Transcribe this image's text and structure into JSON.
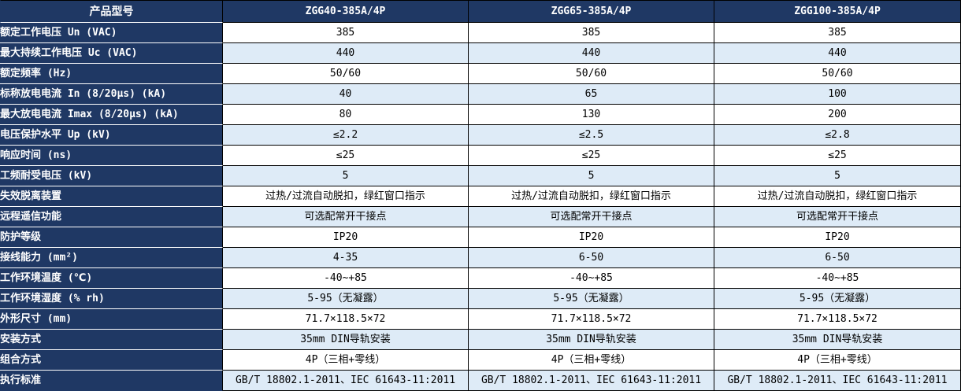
{
  "table": {
    "header": {
      "label": "产品型号",
      "columns": [
        "ZGG40-385A/4P",
        "ZGG65-385A/4P",
        "ZGG100-385A/4P"
      ]
    },
    "rows": [
      {
        "label": "额定工作电压 Un (VAC)",
        "values": [
          "385",
          "385",
          "385"
        ]
      },
      {
        "label": "最大持续工作电压 Uc (VAC)",
        "values": [
          "440",
          "440",
          "440"
        ]
      },
      {
        "label": "额定频率 (Hz)",
        "values": [
          "50/60",
          "50/60",
          "50/60"
        ]
      },
      {
        "label": "标称放电电流 In (8/20μs) (kA)",
        "values": [
          "40",
          "65",
          "100"
        ]
      },
      {
        "label": "最大放电电流 Imax (8/20μs) (kA)",
        "values": [
          "80",
          "130",
          "200"
        ]
      },
      {
        "label": "电压保护水平 Up (kV)",
        "values": [
          "≤2.2",
          "≤2.5",
          "≤2.8"
        ]
      },
      {
        "label": "响应时间 (ns)",
        "values": [
          "≤25",
          "≤25",
          "≤25"
        ]
      },
      {
        "label": "工频耐受电压 (kV)",
        "values": [
          "5",
          "5",
          "5"
        ]
      },
      {
        "label": "失效脱离装置",
        "values": [
          "过热/过流自动脱扣，绿红窗口指示",
          "过热/过流自动脱扣，绿红窗口指示",
          "过热/过流自动脱扣，绿红窗口指示"
        ]
      },
      {
        "label": "远程遥信功能",
        "values": [
          "可选配常开干接点",
          "可选配常开干接点",
          "可选配常开干接点"
        ]
      },
      {
        "label": "防护等级",
        "values": [
          "IP20",
          "IP20",
          "IP20"
        ]
      },
      {
        "label": "接线能力 (mm²)",
        "values": [
          "4-35",
          "6-50",
          "6-50"
        ]
      },
      {
        "label": "工作环境温度 (℃)",
        "values": [
          "-40~+85",
          "-40~+85",
          "-40~+85"
        ]
      },
      {
        "label": "工作环境湿度 (% rh)",
        "values": [
          "5-95（无凝露）",
          "5-95（无凝露）",
          "5-95（无凝露）"
        ]
      },
      {
        "label": "外形尺寸 (mm)",
        "values": [
          "71.7×118.5×72",
          "71.7×118.5×72",
          "71.7×118.5×72"
        ]
      },
      {
        "label": "安装方式",
        "values": [
          "35mm DIN导轨安装",
          "35mm DIN导轨安装",
          "35mm DIN导轨安装"
        ]
      },
      {
        "label": "组合方式",
        "values": [
          "4P（三相+零线）",
          "4P（三相+零线）",
          "4P（三相+零线）"
        ]
      },
      {
        "label": "执行标准",
        "values": [
          "GB/T 18802.1-2011、IEC 61643-11:2011",
          "GB/T 18802.1-2011、IEC 61643-11:2011",
          "GB/T 18802.1-2011、IEC 61643-11:2011"
        ]
      }
    ],
    "colors": {
      "header_bg": "#1f3864",
      "alt_row_bg": "#deebf7",
      "row_bg": "#ffffff",
      "grid": "#000000",
      "header_text": "#ffffff",
      "body_text": "#000000"
    }
  }
}
